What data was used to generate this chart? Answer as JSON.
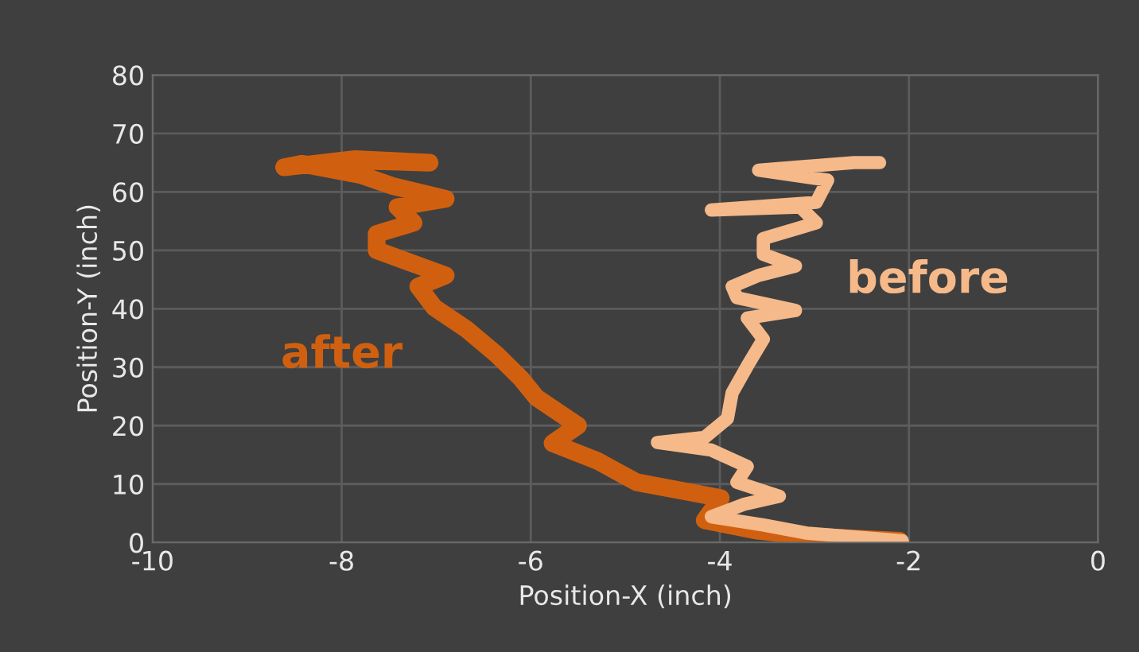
{
  "chart_data": {
    "type": "line",
    "xlabel": "Position-X (inch)",
    "ylabel": "Position-Y (inch)",
    "xlim": [
      -10,
      0
    ],
    "ylim": [
      0,
      80
    ],
    "xticks": [
      -10,
      -8,
      -6,
      -4,
      -2,
      0
    ],
    "yticks": [
      0,
      10,
      20,
      30,
      40,
      50,
      60,
      70,
      80
    ],
    "grid": true,
    "legend": false,
    "marker": "none",
    "line_style": "solid",
    "series": [
      {
        "name": "after",
        "color": "#d0600f",
        "x": [
          -2.1,
          -3.0,
          -3.6,
          -4.16,
          -3.99,
          -4.88,
          -5.3,
          -5.77,
          -5.5,
          -5.94,
          -6.1,
          -6.35,
          -6.68,
          -7.02,
          -7.19,
          -6.9,
          -7.36,
          -7.63,
          -7.63,
          -7.24,
          -7.41,
          -6.9,
          -7.46,
          -7.8,
          -8.42,
          -8.61,
          -7.86,
          -7.07,
          -7.7
        ],
        "values": [
          0.3,
          1,
          2,
          3.8,
          7.6,
          10.3,
          14,
          17,
          20,
          24.8,
          28,
          32,
          36.5,
          40.2,
          43.8,
          45.7,
          48.4,
          50,
          52.8,
          54.7,
          57.4,
          58.8,
          61,
          62.9,
          64.8,
          64.2,
          65.6,
          65,
          65.3
        ]
      },
      {
        "name": "before",
        "color": "#f5b98a",
        "x": [
          -2.07,
          -3.08,
          -3.54,
          -4.09,
          -3.75,
          -3.37,
          -3.82,
          -3.71,
          -4.09,
          -4.66,
          -4.16,
          -3.92,
          -3.87,
          -3.71,
          -3.54,
          -3.71,
          -3.2,
          -3.82,
          -3.87,
          -3.59,
          -3.2,
          -3.54,
          -3.54,
          -2.98,
          -3.15,
          -4.09,
          -2.98,
          -2.86,
          -3.59,
          -2.58,
          -2.31
        ],
        "values": [
          0.3,
          1.6,
          3,
          4.4,
          6.5,
          7.9,
          10.3,
          13,
          15.8,
          17.1,
          18,
          21.2,
          25.6,
          30.2,
          34.8,
          38.4,
          39.7,
          41.9,
          43.8,
          45.7,
          47.3,
          49.3,
          52,
          54.7,
          57.4,
          56.9,
          58.2,
          62,
          63.7,
          65,
          65
        ]
      }
    ]
  }
}
